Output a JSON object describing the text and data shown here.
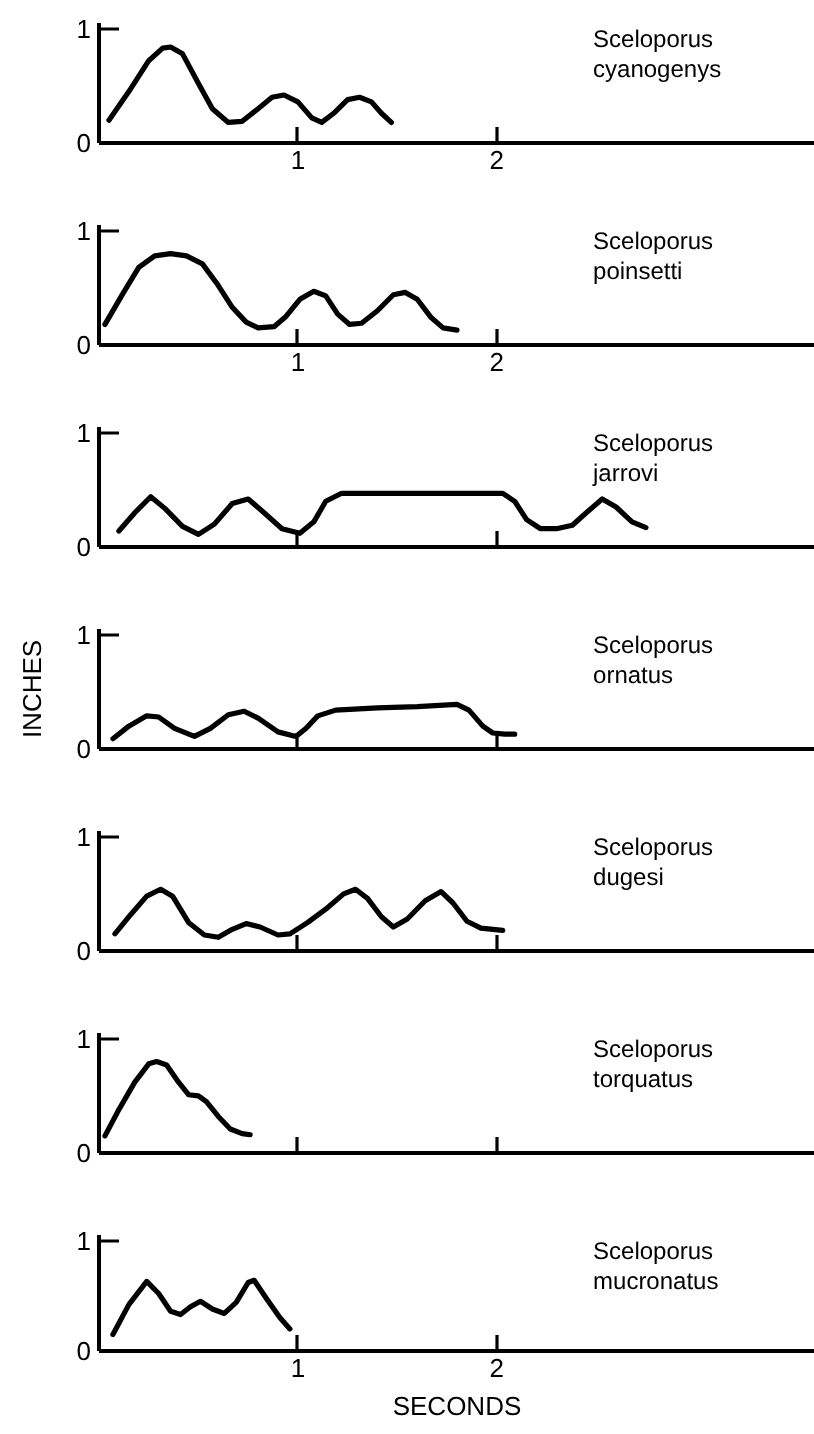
{
  "chart_data": [
    {
      "type": "line",
      "title": "Sceloporus cyanogenys",
      "x": [
        0.05,
        0.15,
        0.25,
        0.32,
        0.36,
        0.42,
        0.5,
        0.57,
        0.65,
        0.72,
        0.8,
        0.87,
        0.93,
        1.0,
        1.07,
        1.12,
        1.18,
        1.25,
        1.31,
        1.37,
        1.42,
        1.47
      ],
      "series": [
        {
          "color": "#000000",
          "values": [
            0.2,
            0.45,
            0.72,
            0.83,
            0.84,
            0.78,
            0.52,
            0.3,
            0.18,
            0.19,
            0.3,
            0.4,
            0.42,
            0.36,
            0.22,
            0.18,
            0.26,
            0.38,
            0.4,
            0.36,
            0.26,
            0.18
          ]
        }
      ],
      "xlim": [
        0,
        3.6
      ],
      "xticks": [
        1,
        2
      ],
      "ylim": [
        0,
        1.05
      ],
      "yticks": [
        0,
        1
      ]
    },
    {
      "type": "line",
      "title": "Sceloporus poinsetti",
      "x": [
        0.03,
        0.12,
        0.2,
        0.28,
        0.36,
        0.44,
        0.52,
        0.6,
        0.67,
        0.74,
        0.8,
        0.88,
        0.94,
        1.01,
        1.08,
        1.14,
        1.2,
        1.26,
        1.32,
        1.4,
        1.48,
        1.54,
        1.6,
        1.67,
        1.73,
        1.8
      ],
      "series": [
        {
          "color": "#000000",
          "values": [
            0.18,
            0.45,
            0.68,
            0.78,
            0.8,
            0.78,
            0.71,
            0.52,
            0.33,
            0.2,
            0.15,
            0.16,
            0.25,
            0.4,
            0.47,
            0.43,
            0.27,
            0.18,
            0.19,
            0.3,
            0.44,
            0.46,
            0.4,
            0.24,
            0.15,
            0.13
          ]
        }
      ],
      "xlim": [
        0,
        3.6
      ],
      "xticks": [
        1,
        2
      ],
      "ylim": [
        0,
        1.05
      ],
      "yticks": [
        0,
        1
      ]
    },
    {
      "type": "line",
      "title": "Sceloporus jarrovi",
      "x": [
        0.1,
        0.18,
        0.26,
        0.33,
        0.42,
        0.5,
        0.58,
        0.67,
        0.75,
        0.83,
        0.92,
        1.01,
        1.08,
        1.14,
        1.22,
        1.4,
        1.6,
        1.8,
        2.03,
        2.09,
        2.15,
        2.22,
        2.3,
        2.38,
        2.45,
        2.53,
        2.6,
        2.68,
        2.75
      ],
      "series": [
        {
          "color": "#000000",
          "values": [
            0.14,
            0.3,
            0.44,
            0.34,
            0.18,
            0.11,
            0.2,
            0.38,
            0.42,
            0.3,
            0.16,
            0.12,
            0.22,
            0.4,
            0.47,
            0.47,
            0.47,
            0.47,
            0.47,
            0.4,
            0.24,
            0.16,
            0.16,
            0.19,
            0.3,
            0.42,
            0.35,
            0.22,
            0.17
          ]
        }
      ],
      "xlim": [
        0,
        3.6
      ],
      "xticks": [
        1,
        2
      ],
      "ylim": [
        0,
        1.05
      ],
      "yticks": [
        0,
        1
      ],
      "tick_labels": "y"
    },
    {
      "type": "line",
      "title": "Sceloporus ornatus",
      "ylabel": "INCHES",
      "x": [
        0.07,
        0.15,
        0.24,
        0.3,
        0.38,
        0.48,
        0.56,
        0.65,
        0.73,
        0.8,
        0.9,
        0.99,
        1.04,
        1.1,
        1.19,
        1.4,
        1.6,
        1.8,
        1.86,
        1.93,
        1.98,
        2.04,
        2.09
      ],
      "series": [
        {
          "color": "#000000",
          "values": [
            0.09,
            0.2,
            0.29,
            0.28,
            0.18,
            0.11,
            0.18,
            0.3,
            0.33,
            0.27,
            0.15,
            0.11,
            0.18,
            0.29,
            0.34,
            0.36,
            0.37,
            0.39,
            0.34,
            0.2,
            0.14,
            0.13,
            0.13
          ]
        }
      ],
      "xlim": [
        0,
        3.6
      ],
      "xticks": [
        1,
        2
      ],
      "ylim": [
        0,
        1.05
      ],
      "yticks": [
        0,
        1
      ],
      "tick_labels": "y"
    },
    {
      "type": "line",
      "title": "Sceloporus dugesi",
      "x": [
        0.08,
        0.16,
        0.24,
        0.31,
        0.37,
        0.45,
        0.53,
        0.6,
        0.67,
        0.74,
        0.81,
        0.9,
        0.96,
        1.05,
        1.15,
        1.23,
        1.29,
        1.35,
        1.42,
        1.48,
        1.55,
        1.64,
        1.72,
        1.78,
        1.85,
        1.92,
        2.03
      ],
      "series": [
        {
          "color": "#000000",
          "values": [
            0.15,
            0.32,
            0.48,
            0.54,
            0.48,
            0.25,
            0.14,
            0.12,
            0.19,
            0.24,
            0.21,
            0.14,
            0.15,
            0.25,
            0.38,
            0.5,
            0.54,
            0.46,
            0.3,
            0.21,
            0.28,
            0.44,
            0.52,
            0.42,
            0.26,
            0.2,
            0.18
          ]
        }
      ],
      "xlim": [
        0,
        3.6
      ],
      "xticks": [
        1,
        2
      ],
      "ylim": [
        0,
        1.05
      ],
      "yticks": [
        0,
        1
      ],
      "tick_labels": "y"
    },
    {
      "type": "line",
      "title": "Sceloporus torquatus",
      "x": [
        0.03,
        0.1,
        0.18,
        0.25,
        0.29,
        0.34,
        0.4,
        0.45,
        0.5,
        0.54,
        0.6,
        0.66,
        0.72,
        0.76
      ],
      "series": [
        {
          "color": "#000000",
          "values": [
            0.15,
            0.38,
            0.62,
            0.78,
            0.8,
            0.77,
            0.62,
            0.51,
            0.5,
            0.45,
            0.32,
            0.21,
            0.17,
            0.16
          ]
        }
      ],
      "xlim": [
        0,
        3.6
      ],
      "xticks": [
        1,
        2
      ],
      "ylim": [
        0,
        1.05
      ],
      "yticks": [
        0,
        1
      ],
      "tick_labels": "y"
    },
    {
      "type": "line",
      "title": "Sceloporus mucronatus",
      "xlabel": "SECONDS",
      "x": [
        0.07,
        0.15,
        0.24,
        0.3,
        0.36,
        0.41,
        0.46,
        0.51,
        0.57,
        0.63,
        0.69,
        0.75,
        0.78,
        0.84,
        0.91,
        0.96
      ],
      "series": [
        {
          "color": "#000000",
          "values": [
            0.15,
            0.42,
            0.63,
            0.52,
            0.36,
            0.33,
            0.4,
            0.45,
            0.38,
            0.34,
            0.44,
            0.62,
            0.64,
            0.48,
            0.3,
            0.2
          ]
        }
      ],
      "xlim": [
        0,
        3.6
      ],
      "xticks": [
        1,
        2
      ],
      "ylim": [
        0,
        1.05
      ],
      "yticks": [
        0,
        1
      ]
    }
  ]
}
